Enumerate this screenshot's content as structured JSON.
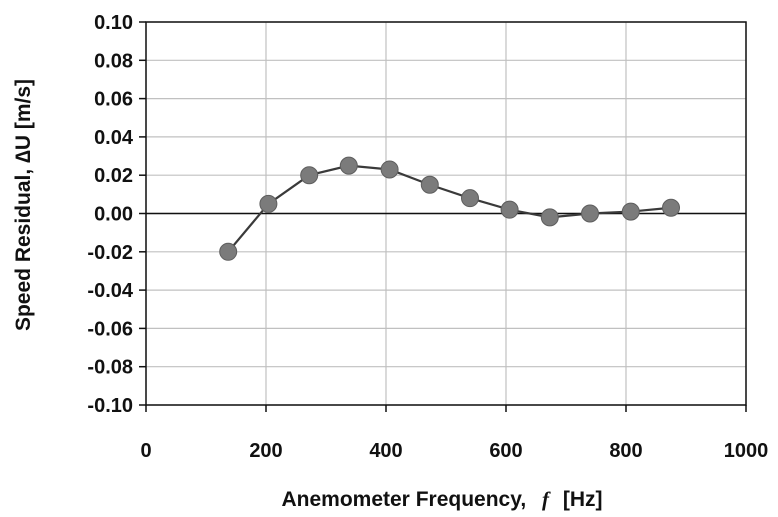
{
  "chart_data": {
    "type": "line",
    "xlabel_parts": {
      "before": "Anemometer Frequency,",
      "symbol": "f",
      "after": "[Hz]"
    },
    "ylabel": "Speed Residual, ∆U [m/s]",
    "xlim": [
      0,
      1000
    ],
    "ylim": [
      -0.1,
      0.1
    ],
    "x_ticks": [
      "0",
      "200",
      "400",
      "600",
      "800",
      "1000"
    ],
    "y_ticks": [
      "-0.10",
      "-0.08",
      "-0.06",
      "-0.04",
      "-0.02",
      "0.00",
      "0.02",
      "0.04",
      "0.06",
      "0.08",
      "0.10"
    ],
    "grid": true,
    "series": [
      {
        "x": [
          137,
          204,
          272,
          338,
          406,
          473,
          540,
          606,
          673,
          740,
          808,
          875
        ],
        "y": [
          -0.02,
          0.005,
          0.02,
          0.025,
          0.023,
          0.015,
          0.008,
          0.002,
          -0.002,
          0.0,
          0.001,
          0.003
        ],
        "line_color": "#3a3a3a",
        "marker_color": "#7b7b7b"
      }
    ]
  }
}
